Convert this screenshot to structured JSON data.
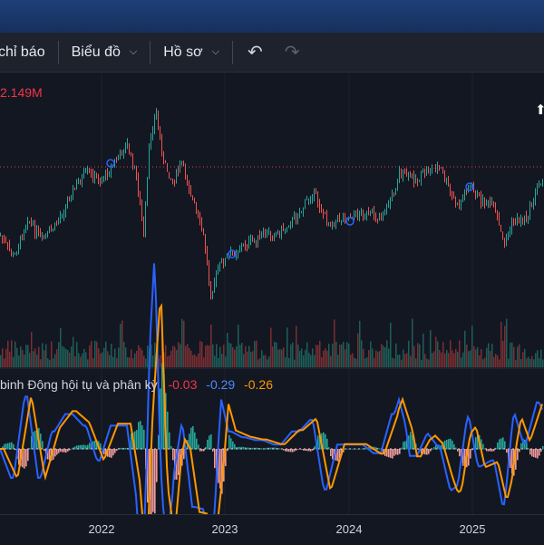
{
  "toolbar": {
    "indicators_label": "chỉ báo",
    "chart_label": "Biểu đồ",
    "profile_label": "Hồ sơ",
    "undo_icon": "undo-icon",
    "redo_icon": "redo-icon"
  },
  "price_label": "2.149M",
  "macd": {
    "name": "Trung bình Động hội tụ và phân kỳ",
    "name_visible": "binh Động hội tụ và phân kỳ",
    "value1": "-0.03",
    "value2": "-0.29",
    "value3": "-0.26"
  },
  "xaxis": {
    "labels": [
      "2022",
      "2023",
      "2024",
      "2025"
    ]
  },
  "colors": {
    "up": "#26a69a",
    "down": "#ef5350",
    "macd_line": "#2962ff",
    "signal_line": "#ff9800",
    "background": "#131722"
  },
  "chart_data": {
    "type": "line",
    "x_labels": [
      "2022",
      "2023",
      "2024",
      "2025"
    ],
    "price_level_line": "2.149M"
  }
}
